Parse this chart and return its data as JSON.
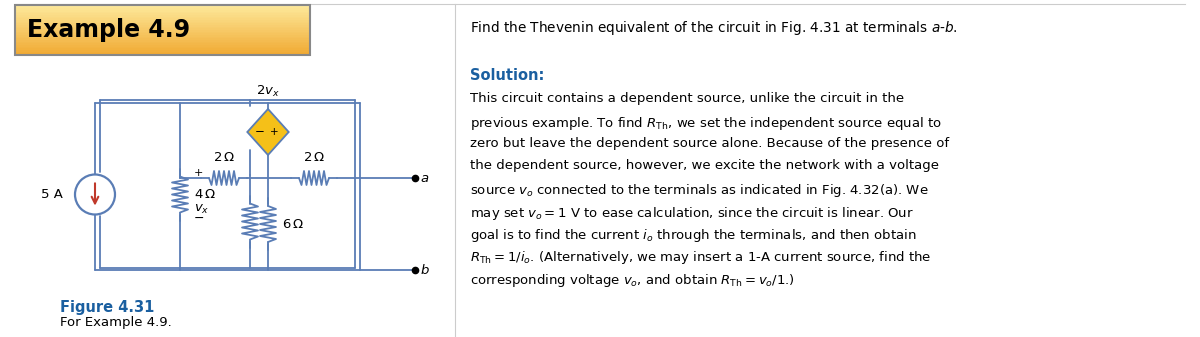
{
  "title": "Example 4.9",
  "title_bg_gradient_top": "#fde89a",
  "title_bg_gradient_bot": "#f0a830",
  "title_text_color": "#000000",
  "header_text": "Find the Thevenin equivalent of the circuit in Fig. 4.31 at terminals $a$-$b$.",
  "solution_label": "Solution:",
  "solution_color": "#1a5fa0",
  "solution_body": [
    "This circuit contains a dependent source, unlike the circuit in the",
    "previous example. To find $R_{\\rm Th}$, we set the independent source equal to",
    "zero but leave the dependent source alone. Because of the presence of",
    "the dependent source, however, we excite the network with a voltage",
    "source $v_o$ connected to the terminals as indicated in Fig. 4.32(a). We",
    "may set $v_o = 1$ V to ease calculation, since the circuit is linear. Our",
    "goal is to find the current $i_o$ through the terminals, and then obtain",
    "$R_{\\rm Th} = 1/i_o$. (Alternatively, we may insert a 1-A current source, find the",
    "corresponding voltage $v_o$, and obtain $R_{\\rm Th} = v_o/1$.)"
  ],
  "figure_label": "Figure 4.31",
  "figure_caption": "For Example 4.9.",
  "bg_color": "#ffffff",
  "border_color": "#999999",
  "wire_color": "#5a7db5",
  "wire_lw": 1.3
}
